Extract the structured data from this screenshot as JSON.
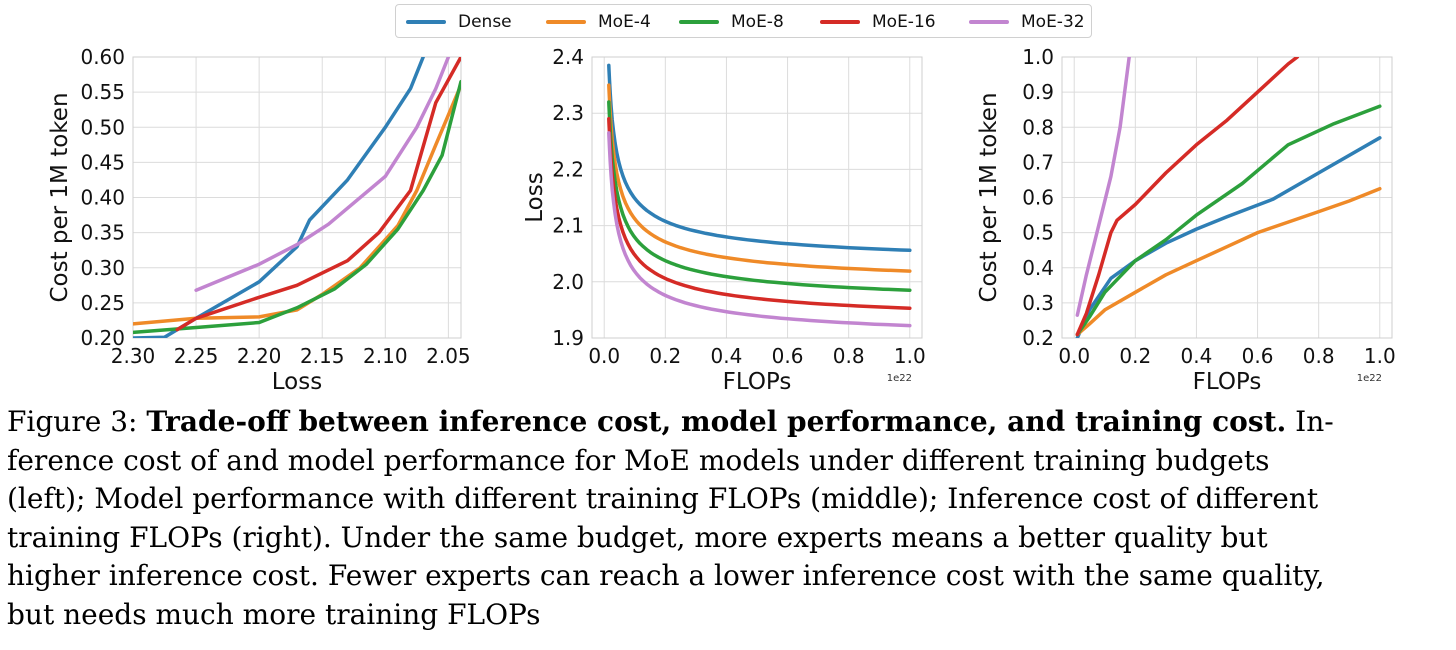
{
  "legend": [
    {
      "name": "Dense",
      "color": "#2f7fb5"
    },
    {
      "name": "MoE-4",
      "color": "#ef8a28"
    },
    {
      "name": "MoE-8",
      "color": "#2ca03c"
    },
    {
      "name": "MoE-16",
      "color": "#d52b26"
    },
    {
      "name": "MoE-32",
      "color": "#c285d0"
    }
  ],
  "chart_data": [
    {
      "type": "line",
      "xlabel": "Loss",
      "ylabel": "Cost per 1M token",
      "xlim": [
        2.3,
        2.04
      ],
      "ylim": [
        0.2,
        0.6
      ],
      "x_reversed": true,
      "xticks": [
        "2.30",
        "2.25",
        "2.20",
        "2.15",
        "2.10",
        "2.05"
      ],
      "yticks": [
        "0.20",
        "0.25",
        "0.30",
        "0.35",
        "0.40",
        "0.45",
        "0.50",
        "0.55",
        "0.60"
      ],
      "grid": true,
      "series": [
        {
          "name": "Dense",
          "color": "#2f7fb5",
          "points": [
            [
              2.3,
              0.2
            ],
            [
              2.275,
              0.201
            ],
            [
              2.25,
              0.228
            ],
            [
              2.2,
              0.28
            ],
            [
              2.17,
              0.33
            ],
            [
              2.16,
              0.368
            ],
            [
              2.13,
              0.425
            ],
            [
              2.1,
              0.5
            ],
            [
              2.08,
              0.555
            ],
            [
              2.07,
              0.6
            ]
          ]
        },
        {
          "name": "MoE-4",
          "color": "#ef8a28",
          "points": [
            [
              2.3,
              0.22
            ],
            [
              2.25,
              0.228
            ],
            [
              2.2,
              0.23
            ],
            [
              2.17,
              0.24
            ],
            [
              2.15,
              0.262
            ],
            [
              2.12,
              0.3
            ],
            [
              2.09,
              0.36
            ],
            [
              2.075,
              0.41
            ],
            [
              2.06,
              0.475
            ],
            [
              2.04,
              0.56
            ]
          ]
        },
        {
          "name": "MoE-8",
          "color": "#2ca03c",
          "points": [
            [
              2.3,
              0.208
            ],
            [
              2.25,
              0.215
            ],
            [
              2.2,
              0.222
            ],
            [
              2.17,
              0.243
            ],
            [
              2.14,
              0.27
            ],
            [
              2.115,
              0.305
            ],
            [
              2.09,
              0.355
            ],
            [
              2.07,
              0.41
            ],
            [
              2.055,
              0.46
            ],
            [
              2.04,
              0.565
            ]
          ]
        },
        {
          "name": "MoE-16",
          "color": "#d52b26",
          "points": [
            [
              2.265,
              0.212
            ],
            [
              2.25,
              0.228
            ],
            [
              2.2,
              0.258
            ],
            [
              2.17,
              0.275
            ],
            [
              2.13,
              0.31
            ],
            [
              2.105,
              0.35
            ],
            [
              2.08,
              0.41
            ],
            [
              2.06,
              0.535
            ],
            [
              2.04,
              0.6
            ]
          ]
        },
        {
          "name": "MoE-32",
          "color": "#c285d0",
          "points": [
            [
              2.25,
              0.268
            ],
            [
              2.2,
              0.305
            ],
            [
              2.17,
              0.333
            ],
            [
              2.145,
              0.362
            ],
            [
              2.1,
              0.43
            ],
            [
              2.075,
              0.5
            ],
            [
              2.06,
              0.555
            ],
            [
              2.05,
              0.6
            ]
          ]
        }
      ]
    },
    {
      "type": "line",
      "xlabel": "FLOPs",
      "ylabel": "Loss",
      "xlim": [
        -0.04,
        1.04
      ],
      "ylim": [
        1.9,
        2.4
      ],
      "exponent_label": "1e22",
      "xticks": [
        "0.0",
        "0.2",
        "0.4",
        "0.6",
        "0.8",
        "1.0"
      ],
      "yticks": [
        "1.9",
        "2.0",
        "2.1",
        "2.2",
        "2.3",
        "2.4"
      ],
      "grid": true,
      "series": [
        {
          "name": "Dense",
          "color": "#2f7fb5",
          "start": [
            0.015,
            2.385
          ],
          "end": [
            1.0,
            2.056
          ]
        },
        {
          "name": "MoE-4",
          "color": "#ef8a28",
          "start": [
            0.015,
            2.35
          ],
          "end": [
            1.0,
            2.019
          ]
        },
        {
          "name": "MoE-8",
          "color": "#2ca03c",
          "start": [
            0.015,
            2.32
          ],
          "end": [
            1.0,
            1.985
          ]
        },
        {
          "name": "MoE-16",
          "color": "#d52b26",
          "start": [
            0.015,
            2.29
          ],
          "end": [
            1.0,
            1.953
          ]
        },
        {
          "name": "MoE-32",
          "color": "#c285d0",
          "start": [
            0.015,
            2.265
          ],
          "end": [
            1.0,
            1.922
          ]
        }
      ]
    },
    {
      "type": "line",
      "xlabel": "FLOPs",
      "ylabel": "Cost per 1M token",
      "xlim": [
        -0.04,
        1.04
      ],
      "ylim": [
        0.2,
        1.0
      ],
      "exponent_label": "1e22",
      "xticks": [
        "0.0",
        "0.2",
        "0.4",
        "0.6",
        "0.8",
        "1.0"
      ],
      "yticks": [
        "0.2",
        "0.3",
        "0.4",
        "0.5",
        "0.6",
        "0.7",
        "0.8",
        "0.9",
        "1.0"
      ],
      "grid": true,
      "series": [
        {
          "name": "Dense",
          "color": "#2f7fb5",
          "points": [
            [
              0.01,
              0.2
            ],
            [
              0.05,
              0.28
            ],
            [
              0.12,
              0.37
            ],
            [
              0.2,
              0.42
            ],
            [
              0.3,
              0.47
            ],
            [
              0.4,
              0.51
            ],
            [
              0.5,
              0.545
            ],
            [
              0.65,
              0.595
            ],
            [
              0.8,
              0.67
            ],
            [
              1.0,
              0.77
            ]
          ]
        },
        {
          "name": "MoE-4",
          "color": "#ef8a28",
          "points": [
            [
              0.01,
              0.21
            ],
            [
              0.05,
              0.24
            ],
            [
              0.1,
              0.28
            ],
            [
              0.2,
              0.33
            ],
            [
              0.3,
              0.38
            ],
            [
              0.4,
              0.42
            ],
            [
              0.5,
              0.46
            ],
            [
              0.6,
              0.5
            ],
            [
              0.7,
              0.53
            ],
            [
              0.8,
              0.56
            ],
            [
              0.9,
              0.59
            ],
            [
              1.0,
              0.625
            ]
          ]
        },
        {
          "name": "MoE-8",
          "color": "#2ca03c",
          "points": [
            [
              0.01,
              0.21
            ],
            [
              0.05,
              0.26
            ],
            [
              0.1,
              0.33
            ],
            [
              0.2,
              0.42
            ],
            [
              0.3,
              0.48
            ],
            [
              0.4,
              0.55
            ],
            [
              0.55,
              0.64
            ],
            [
              0.7,
              0.75
            ],
            [
              0.85,
              0.81
            ],
            [
              1.0,
              0.86
            ]
          ]
        },
        {
          "name": "MoE-16",
          "color": "#d52b26",
          "points": [
            [
              0.01,
              0.21
            ],
            [
              0.04,
              0.27
            ],
            [
              0.08,
              0.38
            ],
            [
              0.12,
              0.5
            ],
            [
              0.14,
              0.535
            ],
            [
              0.2,
              0.58
            ],
            [
              0.3,
              0.67
            ],
            [
              0.4,
              0.75
            ],
            [
              0.5,
              0.82
            ],
            [
              0.6,
              0.9
            ],
            [
              0.7,
              0.98
            ],
            [
              0.73,
              1.0
            ]
          ]
        },
        {
          "name": "MoE-32",
          "color": "#c285d0",
          "points": [
            [
              0.01,
              0.265
            ],
            [
              0.04,
              0.38
            ],
            [
              0.08,
              0.52
            ],
            [
              0.12,
              0.66
            ],
            [
              0.15,
              0.8
            ],
            [
              0.18,
              1.0
            ]
          ]
        }
      ]
    }
  ],
  "caption": {
    "label": "Figure 3:",
    "bold": "Trade-off between inference cost, model performance, and training cost.",
    "lines": [
      "In-",
      "ference cost of and model performance for MoE models under different training budgets",
      "(left); Model performance with different training FLOPs (middle); Inference cost of different",
      "training FLOPs (right). Under the same budget, more experts means a better quality but",
      "higher inference cost. Fewer experts can reach a lower inference cost with the same quality,",
      "but needs much more training FLOPs"
    ]
  }
}
